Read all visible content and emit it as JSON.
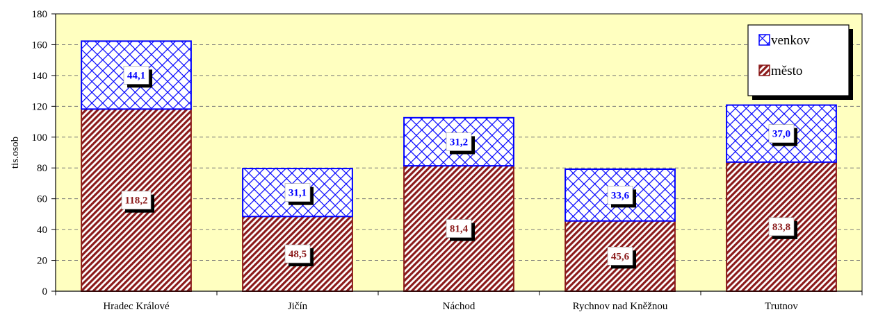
{
  "chart_data": {
    "type": "bar",
    "stacked": true,
    "categories": [
      "Hradec Králové",
      "Jičín",
      "Náchod",
      "Rychnov nad Kněžnou",
      "Trutnov"
    ],
    "series": [
      {
        "name": "město",
        "values": [
          118.2,
          48.5,
          81.4,
          45.6,
          83.8
        ],
        "labels": [
          "118,2",
          "48,5",
          "81,4",
          "45,6",
          "83,8"
        ],
        "color": "#8b1a1a",
        "pattern": "diagonal-stripes"
      },
      {
        "name": "venkov",
        "values": [
          44.1,
          31.1,
          31.2,
          33.6,
          37.0
        ],
        "labels": [
          "44,1",
          "31,1",
          "31,2",
          "33,6",
          "37,0"
        ],
        "color": "#0000ff",
        "pattern": "cross-hatch"
      }
    ],
    "ylabel": "tis.osob",
    "ylim": [
      0,
      180
    ],
    "yticks": [
      0,
      20,
      40,
      60,
      80,
      100,
      120,
      140,
      160,
      180
    ],
    "grid": true,
    "legend_position": "top-right",
    "legend_order": [
      "venkov",
      "město"
    ],
    "plot_background": "#ffffc0"
  }
}
